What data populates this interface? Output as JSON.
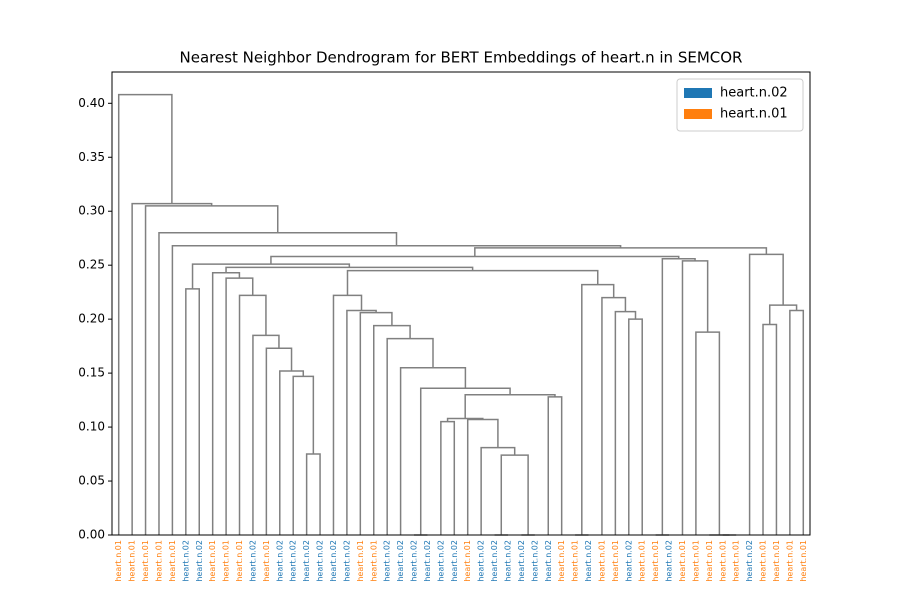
{
  "chart_data": {
    "type": "dendrogram",
    "title": "Nearest Neighbor Dendrogram for BERT Embeddings of heart.n in SEMCOR",
    "link_color": "#808080",
    "legend": "upper right",
    "series": [
      {
        "name": "heart.n.02",
        "color": "#1f77b4"
      },
      {
        "name": "heart.n.01",
        "color": "#ff7f0e"
      }
    ],
    "leaf_labels": [
      "heart.n.01",
      "heart.n.01",
      "heart.n.01",
      "heart.n.01",
      "heart.n.01",
      "heart.n.02",
      "heart.n.02",
      "heart.n.01",
      "heart.n.01",
      "heart.n.01",
      "heart.n.02",
      "heart.n.01",
      "heart.n.02",
      "heart.n.02",
      "heart.n.02",
      "heart.n.02",
      "heart.n.02",
      "heart.n.02",
      "heart.n.01",
      "heart.n.01",
      "heart.n.02",
      "heart.n.02",
      "heart.n.02",
      "heart.n.02",
      "heart.n.02",
      "heart.n.02",
      "heart.n.01",
      "heart.n.02",
      "heart.n.02",
      "heart.n.02",
      "heart.n.02",
      "heart.n.02",
      "heart.n.02",
      "heart.n.01",
      "heart.n.01",
      "heart.n.02",
      "heart.n.01",
      "heart.n.01",
      "heart.n.02",
      "heart.n.01",
      "heart.n.01",
      "heart.n.02",
      "heart.n.01",
      "heart.n.01",
      "heart.n.01",
      "heart.n.01",
      "heart.n.01",
      "heart.n.02",
      "heart.n.01",
      "heart.n.01",
      "heart.n.01",
      "heart.n.01"
    ],
    "merges": [
      {
        "left": 14,
        "right": 15,
        "height": 0.075
      },
      {
        "left": 13,
        "right": 52,
        "height": 0.147
      },
      {
        "left": 12,
        "right": 53,
        "height": 0.152
      },
      {
        "left": 11,
        "right": 54,
        "height": 0.173
      },
      {
        "left": 10,
        "right": 55,
        "height": 0.185
      },
      {
        "left": 9,
        "right": 56,
        "height": 0.222
      },
      {
        "left": 8,
        "right": 57,
        "height": 0.238
      },
      {
        "left": 7,
        "right": 58,
        "height": 0.243
      },
      {
        "left": 22,
        "right": 23,
        "height": 0
      },
      {
        "left": 24,
        "right": 25,
        "height": 0.105
      },
      {
        "left": 28,
        "right": 29,
        "height": 0
      },
      {
        "left": 30,
        "right": 31,
        "height": 0
      },
      {
        "left": 62,
        "right": 63,
        "height": 0.074
      },
      {
        "left": 27,
        "right": 64,
        "height": 0.081
      },
      {
        "left": 26,
        "right": 65,
        "height": 0.107
      },
      {
        "left": 61,
        "right": 66,
        "height": 0.108
      },
      {
        "left": 32,
        "right": 33,
        "height": 0.128
      },
      {
        "left": 67,
        "right": 68,
        "height": 0.13
      },
      {
        "left": 60,
        "right": 69,
        "height": 0.136
      },
      {
        "left": 21,
        "right": 70,
        "height": 0.155
      },
      {
        "left": 20,
        "right": 71,
        "height": 0.182
      },
      {
        "left": 19,
        "right": 72,
        "height": 0.194
      },
      {
        "left": 18,
        "right": 73,
        "height": 0.206
      },
      {
        "left": 17,
        "right": 74,
        "height": 0.208
      },
      {
        "left": 16,
        "right": 75,
        "height": 0.222
      },
      {
        "left": 34,
        "right": 35,
        "height": 0
      },
      {
        "left": 38,
        "right": 39,
        "height": 0.2
      },
      {
        "left": 37,
        "right": 78,
        "height": 0.207
      },
      {
        "left": 36,
        "right": 79,
        "height": 0.22
      },
      {
        "left": 77,
        "right": 80,
        "height": 0.232
      },
      {
        "left": 76,
        "right": 81,
        "height": 0.245
      },
      {
        "left": 59,
        "right": 82,
        "height": 0.248
      },
      {
        "left": 5,
        "right": 6,
        "height": 0.228
      },
      {
        "left": 84,
        "right": 83,
        "height": 0.251
      },
      {
        "left": 40,
        "right": 41,
        "height": 0
      },
      {
        "left": 45,
        "right": 46,
        "height": 0
      },
      {
        "left": 44,
        "right": 87,
        "height": 0
      },
      {
        "left": 43,
        "right": 88,
        "height": 0.188
      },
      {
        "left": 42,
        "right": 89,
        "height": 0.254
      },
      {
        "left": 86,
        "right": 90,
        "height": 0.256
      },
      {
        "left": 85,
        "right": 91,
        "height": 0.258
      },
      {
        "left": 48,
        "right": 49,
        "height": 0.195
      },
      {
        "left": 50,
        "right": 51,
        "height": 0.208
      },
      {
        "left": 93,
        "right": 94,
        "height": 0.213
      },
      {
        "left": 47,
        "right": 95,
        "height": 0.26
      },
      {
        "left": 92,
        "right": 96,
        "height": 0.266
      },
      {
        "left": 4,
        "right": 97,
        "height": 0.268
      },
      {
        "left": 3,
        "right": 98,
        "height": 0.28
      },
      {
        "left": 2,
        "right": 99,
        "height": 0.305
      },
      {
        "left": 1,
        "right": 100,
        "height": 0.307
      },
      {
        "left": 0,
        "right": 101,
        "height": 0.408
      }
    ],
    "ylim": [
      0,
      0.429
    ],
    "yticks": [
      {
        "value": 0,
        "label": "0.00"
      },
      {
        "value": 0.05,
        "label": "0.05"
      },
      {
        "value": 0.1,
        "label": "0.10"
      },
      {
        "value": 0.15,
        "label": "0.15"
      },
      {
        "value": 0.2,
        "label": "0.20"
      },
      {
        "value": 0.25,
        "label": "0.25"
      },
      {
        "value": 0.3,
        "label": "0.30"
      },
      {
        "value": 0.35,
        "label": "0.35"
      },
      {
        "value": 0.4,
        "label": "0.40"
      }
    ]
  }
}
